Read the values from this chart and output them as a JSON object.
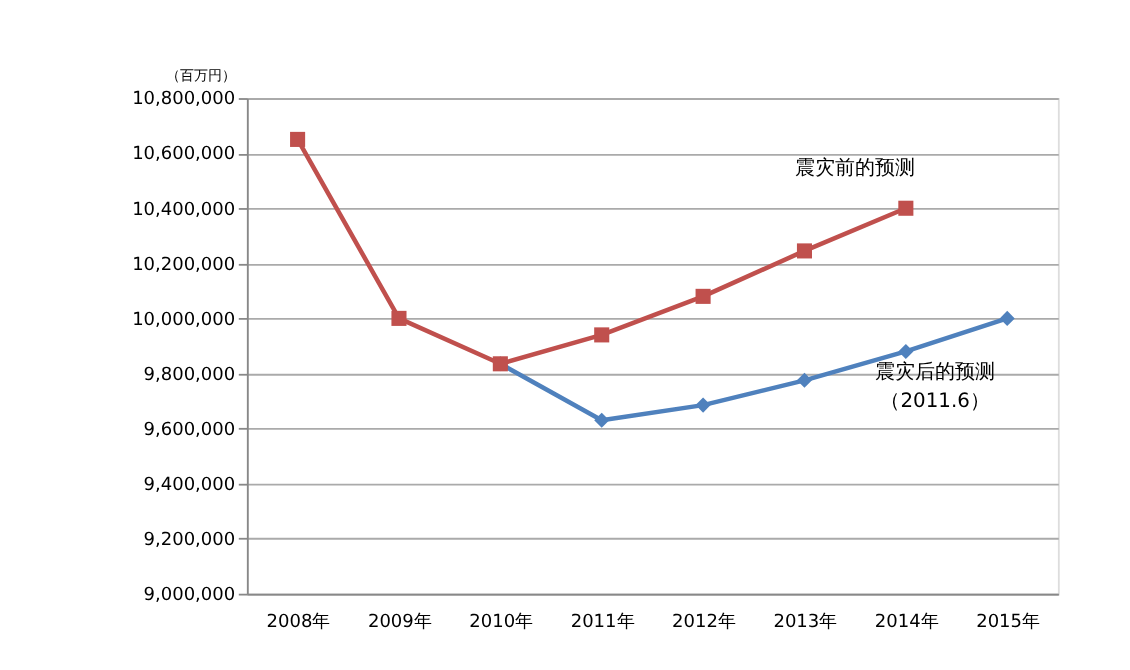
{
  "chart_data": {
    "type": "line",
    "ylabel": "（百万円）",
    "categories": [
      "2008年",
      "2009年",
      "2010年",
      "2011年",
      "2012年",
      "2013年",
      "2014年",
      "2015年"
    ],
    "series": [
      {
        "name": "震灾前的预测",
        "color": "#c0504d",
        "marker": "square",
        "values": [
          10650000,
          10000000,
          9835000,
          9940000,
          10080000,
          10245000,
          10400000,
          null
        ]
      },
      {
        "name": "震灾后的预测",
        "color": "#4f81bd",
        "marker": "diamond",
        "values": [
          null,
          null,
          9835000,
          9630000,
          9685000,
          9775000,
          9880000,
          10000000
        ]
      }
    ],
    "annotations": [
      "（2011.6）"
    ],
    "ylim": [
      9000000,
      10800000
    ],
    "yticks": [
      {
        "value": 9000000,
        "label": "9,000,000"
      },
      {
        "value": 9200000,
        "label": "9,200,000"
      },
      {
        "value": 9400000,
        "label": "9,400,000"
      },
      {
        "value": 9600000,
        "label": "9,600,000"
      },
      {
        "value": 9800000,
        "label": "9,800,000"
      },
      {
        "value": 10000000,
        "label": "10,000,000"
      },
      {
        "value": 10200000,
        "label": "10,200,000"
      },
      {
        "value": 10400000,
        "label": "10,400,000"
      },
      {
        "value": 10600000,
        "label": "10,600,000"
      },
      {
        "value": 10800000,
        "label": "10,800,000"
      }
    ],
    "grid": "y"
  }
}
